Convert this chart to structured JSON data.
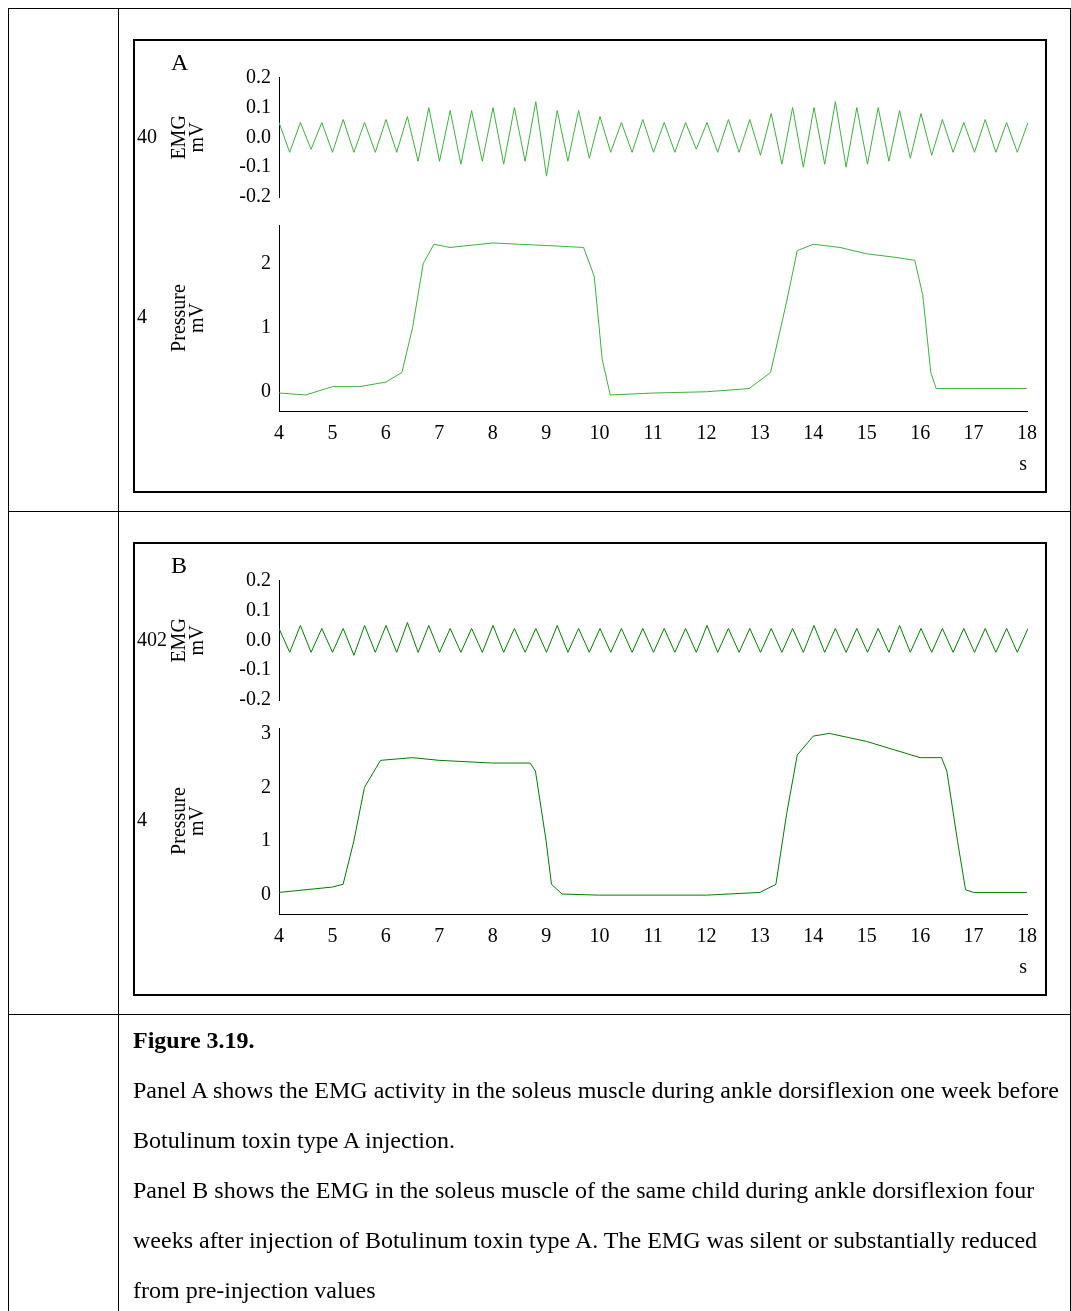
{
  "chart_data": [
    {
      "type": "line",
      "title": "A",
      "ylabel": "EMG\nmV",
      "annotations": [
        "40"
      ],
      "tick_labels": "y",
      "grid": false,
      "legend": false,
      "marker": "none",
      "xlim": [
        4,
        18
      ],
      "ylim": [
        -0.2,
        0.2
      ],
      "yticks": [
        -0.2,
        -0.1,
        {
          "value": 0,
          "label": "0.0"
        },
        0.1,
        0.2
      ],
      "x": [
        4,
        4.2,
        4.4,
        4.6,
        4.8,
        5,
        5.2,
        5.4,
        5.6,
        5.8,
        6,
        6.2,
        6.4,
        6.6,
        6.8,
        7,
        7.2,
        7.4,
        7.6,
        7.8,
        8,
        8.2,
        8.4,
        8.6,
        8.8,
        9,
        9.2,
        9.4,
        9.6,
        9.8,
        10,
        10.2,
        10.4,
        10.6,
        10.8,
        11,
        11.2,
        11.4,
        11.6,
        11.8,
        12,
        12.2,
        12.4,
        12.6,
        12.8,
        13,
        13.2,
        13.4,
        13.6,
        13.8,
        14,
        14.2,
        14.4,
        14.6,
        14.8,
        15,
        15.2,
        15.4,
        15.6,
        15.8,
        16,
        16.2,
        16.4,
        16.6,
        16.8,
        17,
        17.2,
        17.4,
        17.6,
        17.8,
        18
      ],
      "series": [
        {
          "color": "#3cb33c",
          "values": [
            0.05,
            -0.05,
            0.05,
            -0.04,
            0.05,
            -0.05,
            0.06,
            -0.05,
            0.05,
            -0.05,
            0.06,
            -0.05,
            0.07,
            -0.08,
            0.1,
            -0.08,
            0.09,
            -0.09,
            0.09,
            -0.08,
            0.1,
            -0.09,
            0.1,
            -0.08,
            0.12,
            -0.13,
            0.09,
            -0.08,
            0.09,
            -0.07,
            0.07,
            -0.05,
            0.05,
            -0.05,
            0.06,
            -0.05,
            0.05,
            -0.05,
            0.05,
            -0.04,
            0.05,
            -0.05,
            0.06,
            -0.05,
            0.06,
            -0.06,
            0.08,
            -0.09,
            0.1,
            -0.1,
            0.1,
            -0.09,
            0.12,
            -0.1,
            0.1,
            -0.09,
            0.1,
            -0.08,
            0.09,
            -0.07,
            0.08,
            -0.06,
            0.06,
            -0.05,
            0.05,
            -0.05,
            0.06,
            -0.05,
            0.05,
            -0.05,
            0.05
          ]
        }
      ]
    },
    {
      "type": "line",
      "ylabel": "Pressure\nmV",
      "xlabel": "s",
      "annotations": [
        "4"
      ],
      "grid": false,
      "legend": false,
      "marker": "none",
      "xlim": [
        4,
        18
      ],
      "xticks": [
        4,
        5,
        6,
        7,
        8,
        9,
        10,
        11,
        12,
        13,
        14,
        15,
        16,
        17,
        18
      ],
      "ylim": [
        -0.3,
        2.6
      ],
      "yticks": [
        0,
        1,
        2
      ],
      "x": [
        4,
        4.5,
        5,
        5.5,
        6,
        6.3,
        6.5,
        6.7,
        6.9,
        7.2,
        8,
        8.5,
        9,
        9.7,
        9.9,
        10.05,
        10.2,
        11,
        12,
        12.8,
        13.2,
        13.5,
        13.7,
        14,
        14.5,
        15,
        15.5,
        15.9,
        16.05,
        16.2,
        16.3,
        17,
        18
      ],
      "series": [
        {
          "color": "#3cb33c",
          "values": [
            -0.02,
            -0.05,
            0.08,
            0.08,
            0.15,
            0.3,
            1.0,
            2.0,
            2.3,
            2.25,
            2.32,
            2.3,
            2.28,
            2.25,
            1.8,
            0.5,
            -0.05,
            -0.02,
            0.0,
            0.05,
            0.3,
            1.4,
            2.2,
            2.3,
            2.25,
            2.15,
            2.1,
            2.05,
            1.5,
            0.3,
            0.05,
            0.05,
            0.05
          ]
        }
      ]
    },
    {
      "type": "line",
      "title": "B",
      "ylabel": "EMG\nmV",
      "annotations": [
        "402"
      ],
      "tick_labels": "y",
      "grid": false,
      "legend": false,
      "marker": "none",
      "xlim": [
        4,
        18
      ],
      "ylim": [
        -0.2,
        0.2
      ],
      "yticks": [
        -0.2,
        -0.1,
        {
          "value": 0,
          "label": "0.0"
        },
        0.1,
        0.2
      ],
      "x": [
        4,
        4.2,
        4.4,
        4.6,
        4.8,
        5,
        5.2,
        5.4,
        5.6,
        5.8,
        6,
        6.2,
        6.4,
        6.6,
        6.8,
        7,
        7.2,
        7.4,
        7.6,
        7.8,
        8,
        8.2,
        8.4,
        8.6,
        8.8,
        9,
        9.2,
        9.4,
        9.6,
        9.8,
        10,
        10.2,
        10.4,
        10.6,
        10.8,
        11,
        11.2,
        11.4,
        11.6,
        11.8,
        12,
        12.2,
        12.4,
        12.6,
        12.8,
        13,
        13.2,
        13.4,
        13.6,
        13.8,
        14,
        14.2,
        14.4,
        14.6,
        14.8,
        15,
        15.2,
        15.4,
        15.6,
        15.8,
        16,
        16.2,
        16.4,
        16.6,
        16.8,
        17,
        17.2,
        17.4,
        17.6,
        17.8,
        18
      ],
      "series": [
        {
          "color": "#007f00",
          "values": [
            0.04,
            -0.04,
            0.05,
            -0.04,
            0.04,
            -0.04,
            0.04,
            -0.05,
            0.05,
            -0.04,
            0.05,
            -0.04,
            0.06,
            -0.04,
            0.05,
            -0.04,
            0.04,
            -0.04,
            0.04,
            -0.04,
            0.05,
            -0.04,
            0.04,
            -0.04,
            0.04,
            -0.04,
            0.05,
            -0.04,
            0.04,
            -0.04,
            0.04,
            -0.04,
            0.04,
            -0.04,
            0.04,
            -0.04,
            0.04,
            -0.04,
            0.04,
            -0.04,
            0.05,
            -0.04,
            0.04,
            -0.04,
            0.04,
            -0.04,
            0.04,
            -0.04,
            0.04,
            -0.04,
            0.05,
            -0.04,
            0.04,
            -0.04,
            0.04,
            -0.04,
            0.04,
            -0.04,
            0.05,
            -0.04,
            0.04,
            -0.04,
            0.04,
            -0.04,
            0.04,
            -0.04,
            0.04,
            -0.04,
            0.04,
            -0.04,
            0.04
          ]
        }
      ]
    },
    {
      "type": "line",
      "ylabel": "Pressure\nmV",
      "xlabel": "s",
      "annotations": [
        "4",
        "Figure 3.19.",
        "Panel A shows the EMG activity in the soleus muscle during ankle dorsiflexion one week before Botulinum toxin type A injection.",
        "Panel B shows the EMG in the soleus muscle of the same child during ankle dorsiflexion four weeks after injection of Botulinum toxin type A. The EMG was silent or substantially reduced from pre-injection values"
      ],
      "grid": false,
      "legend": false,
      "marker": "none",
      "xlim": [
        4,
        18
      ],
      "xticks": [
        4,
        5,
        6,
        7,
        8,
        9,
        10,
        11,
        12,
        13,
        14,
        15,
        16,
        17,
        18
      ],
      "ylim": [
        -0.35,
        3.1
      ],
      "yticks": [
        0,
        1,
        2,
        3
      ],
      "x": [
        4,
        5,
        5.2,
        5.4,
        5.6,
        5.9,
        6.5,
        7,
        8,
        8.7,
        8.8,
        9,
        9.1,
        9.3,
        10,
        12,
        13,
        13.3,
        13.5,
        13.7,
        14,
        14.3,
        15,
        15.5,
        16,
        16.4,
        16.5,
        16.7,
        16.85,
        17,
        18
      ],
      "series": [
        {
          "color": "#007f00",
          "values": [
            0.05,
            0.15,
            0.2,
            1.0,
            2.0,
            2.5,
            2.55,
            2.5,
            2.45,
            2.45,
            2.3,
            1.0,
            0.2,
            0.02,
            0.0,
            0.0,
            0.05,
            0.2,
            1.5,
            2.6,
            2.95,
            3.0,
            2.85,
            2.7,
            2.55,
            2.55,
            2.3,
            1.0,
            0.1,
            0.05,
            0.05
          ]
        }
      ]
    }
  ]
}
